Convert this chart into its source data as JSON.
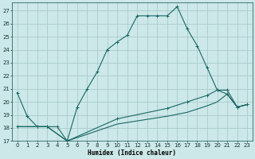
{
  "xlabel": "Humidex (Indice chaleur)",
  "bg_color": "#cce8e8",
  "grid_color": "#aacccc",
  "line_color": "#1a6666",
  "xlim": [
    -0.5,
    23.5
  ],
  "ylim": [
    17,
    27.6
  ],
  "yticks": [
    17,
    18,
    19,
    20,
    21,
    22,
    23,
    24,
    25,
    26,
    27
  ],
  "xticks": [
    0,
    1,
    2,
    3,
    4,
    5,
    6,
    7,
    8,
    9,
    10,
    11,
    12,
    13,
    14,
    15,
    16,
    17,
    18,
    19,
    20,
    21,
    22,
    23
  ],
  "line1_x": [
    0,
    1,
    2,
    3,
    4,
    5,
    6,
    7,
    8,
    9,
    10,
    11,
    12,
    13,
    14,
    15,
    16,
    17,
    18,
    19,
    20,
    21,
    22,
    23
  ],
  "line1_y": [
    20.7,
    18.9,
    18.1,
    18.1,
    18.1,
    17.0,
    19.6,
    21.0,
    22.3,
    24.0,
    24.6,
    25.1,
    26.6,
    26.6,
    26.6,
    26.6,
    27.3,
    25.6,
    24.3,
    22.6,
    20.9,
    20.6,
    19.6,
    19.8
  ],
  "line2_x": [
    0,
    2,
    3,
    5,
    10,
    15,
    17,
    19,
    20,
    21,
    22,
    23
  ],
  "line2_y": [
    18.1,
    18.1,
    18.1,
    17.0,
    18.7,
    19.5,
    20.0,
    20.5,
    20.9,
    20.9,
    19.6,
    19.8
  ],
  "line3_x": [
    0,
    2,
    3,
    5,
    10,
    15,
    17,
    19,
    20,
    21,
    22,
    23
  ],
  "line3_y": [
    18.1,
    18.1,
    18.1,
    17.0,
    18.3,
    18.9,
    19.2,
    19.7,
    20.0,
    20.6,
    19.6,
    19.8
  ]
}
